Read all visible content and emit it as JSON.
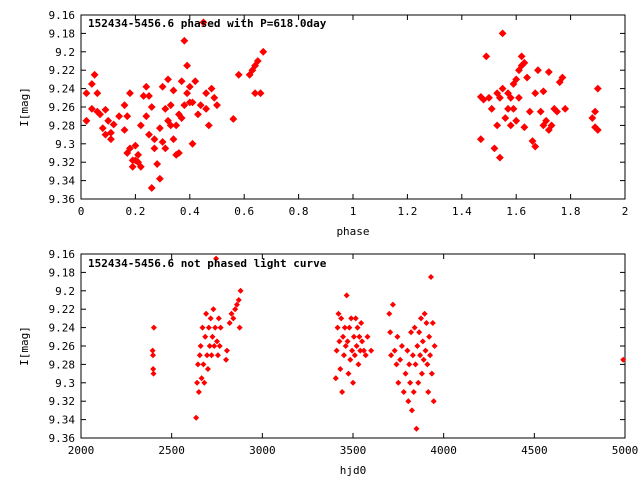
{
  "charts": [
    {
      "title": "152434-5456.6 phased with P=618.0day",
      "xlabel": "phase",
      "ylabel": "I[mag]"
    },
    {
      "title": "152434-5456.6 not phased light curve",
      "xlabel": "hjd0",
      "ylabel": "I[mag]"
    }
  ],
  "chart_data": [
    {
      "type": "scatter",
      "title": "152434-5456.6 phased with P=618.0day",
      "xlabel": "phase",
      "ylabel": "I[mag]",
      "xlim": [
        0,
        2
      ],
      "ylim": [
        9.36,
        9.16
      ],
      "y_inverted": true,
      "xticks": [
        "0",
        "0.2",
        "0.4",
        "0.6",
        "0.8",
        "1",
        "1.2",
        "1.4",
        "1.6",
        "1.8",
        "2"
      ],
      "yticks": [
        "9.16",
        "9.18",
        "9.2",
        "9.22",
        "9.24",
        "9.26",
        "9.28",
        "9.3",
        "9.32",
        "9.34",
        "9.36"
      ],
      "marker_color": "#ff0000",
      "series": [
        {
          "points": [
            [
              0.02,
              9.245
            ],
            [
              0.02,
              9.275
            ],
            [
              0.04,
              9.235
            ],
            [
              0.04,
              9.262
            ],
            [
              0.05,
              9.225
            ],
            [
              0.06,
              9.245
            ],
            [
              0.06,
              9.265
            ],
            [
              0.07,
              9.268
            ],
            [
              0.08,
              9.283
            ],
            [
              0.09,
              9.263
            ],
            [
              0.09,
              9.29
            ],
            [
              0.1,
              9.275
            ],
            [
              0.11,
              9.288
            ],
            [
              0.11,
              9.295
            ],
            [
              0.12,
              9.279
            ],
            [
              0.14,
              9.27
            ],
            [
              0.16,
              9.258
            ],
            [
              0.16,
              9.285
            ],
            [
              0.17,
              9.27
            ],
            [
              0.17,
              9.31
            ],
            [
              0.18,
              9.305
            ],
            [
              0.18,
              9.245
            ],
            [
              0.19,
              9.318
            ],
            [
              0.19,
              9.325
            ],
            [
              0.2,
              9.302
            ],
            [
              0.2,
              9.318
            ],
            [
              0.21,
              9.32
            ],
            [
              0.21,
              9.312
            ],
            [
              0.22,
              9.28
            ],
            [
              0.22,
              9.325
            ],
            [
              0.23,
              9.248
            ],
            [
              0.24,
              9.238
            ],
            [
              0.24,
              9.27
            ],
            [
              0.25,
              9.248
            ],
            [
              0.25,
              9.29
            ],
            [
              0.26,
              9.348
            ],
            [
              0.26,
              9.26
            ],
            [
              0.27,
              9.295
            ],
            [
              0.27,
              9.305
            ],
            [
              0.28,
              9.322
            ],
            [
              0.29,
              9.283
            ],
            [
              0.29,
              9.338
            ],
            [
              0.3,
              9.238
            ],
            [
              0.3,
              9.298
            ],
            [
              0.31,
              9.262
            ],
            [
              0.31,
              9.305
            ],
            [
              0.32,
              9.23
            ],
            [
              0.32,
              9.275
            ],
            [
              0.33,
              9.258
            ],
            [
              0.33,
              9.28
            ],
            [
              0.34,
              9.242
            ],
            [
              0.34,
              9.295
            ],
            [
              0.35,
              9.28
            ],
            [
              0.35,
              9.312
            ],
            [
              0.36,
              9.268
            ],
            [
              0.36,
              9.31
            ],
            [
              0.37,
              9.232
            ],
            [
              0.37,
              9.272
            ],
            [
              0.38,
              9.188
            ],
            [
              0.38,
              9.258
            ],
            [
              0.39,
              9.215
            ],
            [
              0.39,
              9.245
            ],
            [
              0.4,
              9.238
            ],
            [
              0.4,
              9.255
            ],
            [
              0.41,
              9.255
            ],
            [
              0.41,
              9.3
            ],
            [
              0.42,
              9.232
            ],
            [
              0.43,
              9.268
            ],
            [
              0.44,
              9.258
            ],
            [
              0.45,
              9.168
            ],
            [
              0.46,
              9.245
            ],
            [
              0.46,
              9.262
            ],
            [
              0.47,
              9.28
            ],
            [
              0.48,
              9.24
            ],
            [
              0.49,
              9.25
            ],
            [
              0.5,
              9.258
            ],
            [
              0.56,
              9.273
            ],
            [
              0.58,
              9.225
            ],
            [
              0.62,
              9.225
            ],
            [
              0.63,
              9.22
            ],
            [
              0.64,
              9.215
            ],
            [
              0.64,
              9.245
            ],
            [
              0.65,
              9.21
            ],
            [
              0.66,
              9.245
            ],
            [
              0.67,
              9.2
            ],
            [
              1.47,
              9.249
            ],
            [
              1.47,
              9.295
            ],
            [
              1.48,
              9.252
            ],
            [
              1.49,
              9.205
            ],
            [
              1.5,
              9.25
            ],
            [
              1.51,
              9.262
            ],
            [
              1.52,
              9.305
            ],
            [
              1.53,
              9.245
            ],
            [
              1.53,
              9.28
            ],
            [
              1.54,
              9.25
            ],
            [
              1.54,
              9.315
            ],
            [
              1.55,
              9.24
            ],
            [
              1.55,
              9.18
            ],
            [
              1.56,
              9.272
            ],
            [
              1.57,
              9.245
            ],
            [
              1.57,
              9.262
            ],
            [
              1.58,
              9.25
            ],
            [
              1.58,
              9.28
            ],
            [
              1.59,
              9.262
            ],
            [
              1.59,
              9.235
            ],
            [
              1.6,
              9.23
            ],
            [
              1.6,
              9.275
            ],
            [
              1.61,
              9.22
            ],
            [
              1.61,
              9.25
            ],
            [
              1.62,
              9.205
            ],
            [
              1.62,
              9.215
            ],
            [
              1.63,
              9.212
            ],
            [
              1.63,
              9.282
            ],
            [
              1.64,
              9.228
            ],
            [
              1.65,
              9.265
            ],
            [
              1.66,
              9.297
            ],
            [
              1.67,
              9.303
            ],
            [
              1.67,
              9.245
            ],
            [
              1.68,
              9.22
            ],
            [
              1.69,
              9.265
            ],
            [
              1.7,
              9.28
            ],
            [
              1.7,
              9.243
            ],
            [
              1.71,
              9.275
            ],
            [
              1.72,
              9.285
            ],
            [
              1.72,
              9.222
            ],
            [
              1.73,
              9.28
            ],
            [
              1.74,
              9.262
            ],
            [
              1.75,
              9.265
            ],
            [
              1.76,
              9.233
            ],
            [
              1.77,
              9.228
            ],
            [
              1.78,
              9.262
            ],
            [
              1.88,
              9.272
            ],
            [
              1.89,
              9.265
            ],
            [
              1.89,
              9.282
            ],
            [
              1.9,
              9.285
            ],
            [
              1.9,
              9.24
            ]
          ]
        }
      ]
    },
    {
      "type": "scatter",
      "title": "152434-5456.6 not phased light curve",
      "xlabel": "hjd0",
      "ylabel": "I[mag]",
      "xlim": [
        2000,
        5000
      ],
      "ylim": [
        9.36,
        9.16
      ],
      "y_inverted": true,
      "xticks": [
        "2000",
        "2500",
        "3000",
        "3500",
        "4000",
        "4500",
        "5000"
      ],
      "yticks": [
        "9.16",
        "9.18",
        "9.2",
        "9.22",
        "9.24",
        "9.26",
        "9.28",
        "9.3",
        "9.32",
        "9.34",
        "9.36"
      ],
      "marker_color": "#ff0000",
      "series": [
        {
          "points": [
            [
              2395,
              9.265
            ],
            [
              2397,
              9.27
            ],
            [
              2398,
              9.285
            ],
            [
              2400,
              9.29
            ],
            [
              2402,
              9.24
            ],
            [
              2635,
              9.338
            ],
            [
              2640,
              9.3
            ],
            [
              2645,
              9.28
            ],
            [
              2650,
              9.31
            ],
            [
              2655,
              9.27
            ],
            [
              2660,
              9.26
            ],
            [
              2665,
              9.295
            ],
            [
              2670,
              9.24
            ],
            [
              2675,
              9.28
            ],
            [
              2680,
              9.3
            ],
            [
              2685,
              9.25
            ],
            [
              2690,
              9.225
            ],
            [
              2695,
              9.27
            ],
            [
              2700,
              9.285
            ],
            [
              2705,
              9.24
            ],
            [
              2710,
              9.26
            ],
            [
              2715,
              9.23
            ],
            [
              2720,
              9.27
            ],
            [
              2725,
              9.25
            ],
            [
              2730,
              9.22
            ],
            [
              2735,
              9.26
            ],
            [
              2740,
              9.24
            ],
            [
              2745,
              9.165
            ],
            [
              2750,
              9.255
            ],
            [
              2755,
              9.27
            ],
            [
              2760,
              9.23
            ],
            [
              2765,
              9.26
            ],
            [
              2770,
              9.24
            ],
            [
              2800,
              9.275
            ],
            [
              2805,
              9.265
            ],
            [
              2820,
              9.235
            ],
            [
              2830,
              9.225
            ],
            [
              2840,
              9.23
            ],
            [
              2850,
              9.22
            ],
            [
              2860,
              9.215
            ],
            [
              2870,
              9.21
            ],
            [
              2875,
              9.24
            ],
            [
              2880,
              9.2
            ],
            [
              3405,
              9.295
            ],
            [
              3410,
              9.265
            ],
            [
              3415,
              9.24
            ],
            [
              3420,
              9.225
            ],
            [
              3425,
              9.255
            ],
            [
              3430,
              9.285
            ],
            [
              3435,
              9.23
            ],
            [
              3440,
              9.31
            ],
            [
              3445,
              9.25
            ],
            [
              3450,
              9.27
            ],
            [
              3455,
              9.24
            ],
            [
              3460,
              9.26
            ],
            [
              3465,
              9.205
            ],
            [
              3470,
              9.255
            ],
            [
              3475,
              9.29
            ],
            [
              3480,
              9.24
            ],
            [
              3485,
              9.275
            ],
            [
              3490,
              9.23
            ],
            [
              3495,
              9.265
            ],
            [
              3500,
              9.3
            ],
            [
              3505,
              9.25
            ],
            [
              3510,
              9.27
            ],
            [
              3515,
              9.23
            ],
            [
              3520,
              9.26
            ],
            [
              3525,
              9.24
            ],
            [
              3530,
              9.28
            ],
            [
              3535,
              9.25
            ],
            [
              3540,
              9.265
            ],
            [
              3545,
              9.235
            ],
            [
              3550,
              9.255
            ],
            [
              3560,
              9.265
            ],
            [
              3570,
              9.27
            ],
            [
              3580,
              9.25
            ],
            [
              3600,
              9.265
            ],
            [
              3700,
              9.225
            ],
            [
              3705,
              9.245
            ],
            [
              3710,
              9.27
            ],
            [
              3720,
              9.215
            ],
            [
              3730,
              9.265
            ],
            [
              3740,
              9.28
            ],
            [
              3745,
              9.25
            ],
            [
              3750,
              9.3
            ],
            [
              3760,
              9.275
            ],
            [
              3770,
              9.26
            ],
            [
              3780,
              9.31
            ],
            [
              3790,
              9.29
            ],
            [
              3800,
              9.265
            ],
            [
              3805,
              9.32
            ],
            [
              3810,
              9.28
            ],
            [
              3815,
              9.3
            ],
            [
              3820,
              9.245
            ],
            [
              3825,
              9.33
            ],
            [
              3830,
              9.27
            ],
            [
              3835,
              9.31
            ],
            [
              3840,
              9.24
            ],
            [
              3845,
              9.28
            ],
            [
              3850,
              9.35
            ],
            [
              3855,
              9.26
            ],
            [
              3860,
              9.3
            ],
            [
              3865,
              9.245
            ],
            [
              3870,
              9.27
            ],
            [
              3875,
              9.23
            ],
            [
              3880,
              9.29
            ],
            [
              3885,
              9.255
            ],
            [
              3890,
              9.275
            ],
            [
              3895,
              9.225
            ],
            [
              3900,
              9.265
            ],
            [
              3905,
              9.235
            ],
            [
              3910,
              9.28
            ],
            [
              3915,
              9.31
            ],
            [
              3920,
              9.25
            ],
            [
              3925,
              9.27
            ],
            [
              3930,
              9.185
            ],
            [
              3935,
              9.29
            ],
            [
              3940,
              9.235
            ],
            [
              3945,
              9.32
            ],
            [
              3950,
              9.26
            ],
            [
              4990,
              9.275
            ]
          ]
        }
      ]
    }
  ]
}
